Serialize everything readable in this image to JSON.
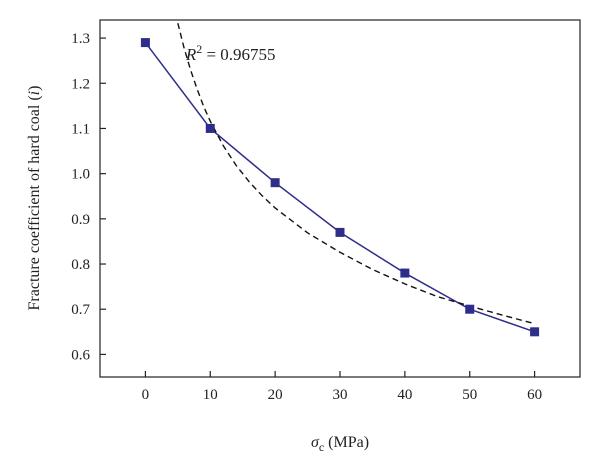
{
  "chart_data": {
    "type": "line",
    "title": "",
    "xlabel_symbol": "σ",
    "xlabel_sub": "c",
    "xlabel_unit": " (MPa)",
    "ylabel_main": "Fracture coefficient of hard coal (",
    "ylabel_var": "i",
    "ylabel_close": ")",
    "xlim": [
      -7,
      67
    ],
    "ylim": [
      0.55,
      1.34
    ],
    "x_ticks": [
      0,
      10,
      20,
      30,
      40,
      50,
      60
    ],
    "x_tick_labels": [
      "0",
      "10",
      "20",
      "30",
      "40",
      "50",
      "60"
    ],
    "y_ticks": [
      0.6,
      0.7,
      0.8,
      0.9,
      1.0,
      1.1,
      1.2,
      1.3
    ],
    "y_tick_labels": [
      "0.6",
      "0.7",
      "0.8",
      "0.9",
      "1.0",
      "1.1",
      "1.2",
      "1.3"
    ],
    "grid": false,
    "series": [
      {
        "style": "solid-line-square-markers",
        "color": "#2e2e8a",
        "x": [
          0,
          10,
          20,
          30,
          40,
          50,
          60
        ],
        "y": [
          1.29,
          1.1,
          0.98,
          0.87,
          0.78,
          0.7,
          0.65
        ]
      },
      {
        "style": "dashed-fit-curve",
        "color": "#111111",
        "x": [
          5,
          6,
          7,
          8,
          9,
          10,
          12,
          14,
          16,
          18,
          20,
          25,
          30,
          35,
          40,
          45,
          50,
          55,
          60
        ],
        "y": [
          1.333,
          1.276,
          1.228,
          1.186,
          1.148,
          1.116,
          1.062,
          1.018,
          0.982,
          0.951,
          0.924,
          0.869,
          0.826,
          0.788,
          0.756,
          0.728,
          0.707,
          0.687,
          0.668
        ]
      }
    ],
    "annotation": {
      "var": "R",
      "sup": "2",
      "text": " = 0.96755",
      "at_x": 5,
      "at_y": 1.265
    }
  }
}
